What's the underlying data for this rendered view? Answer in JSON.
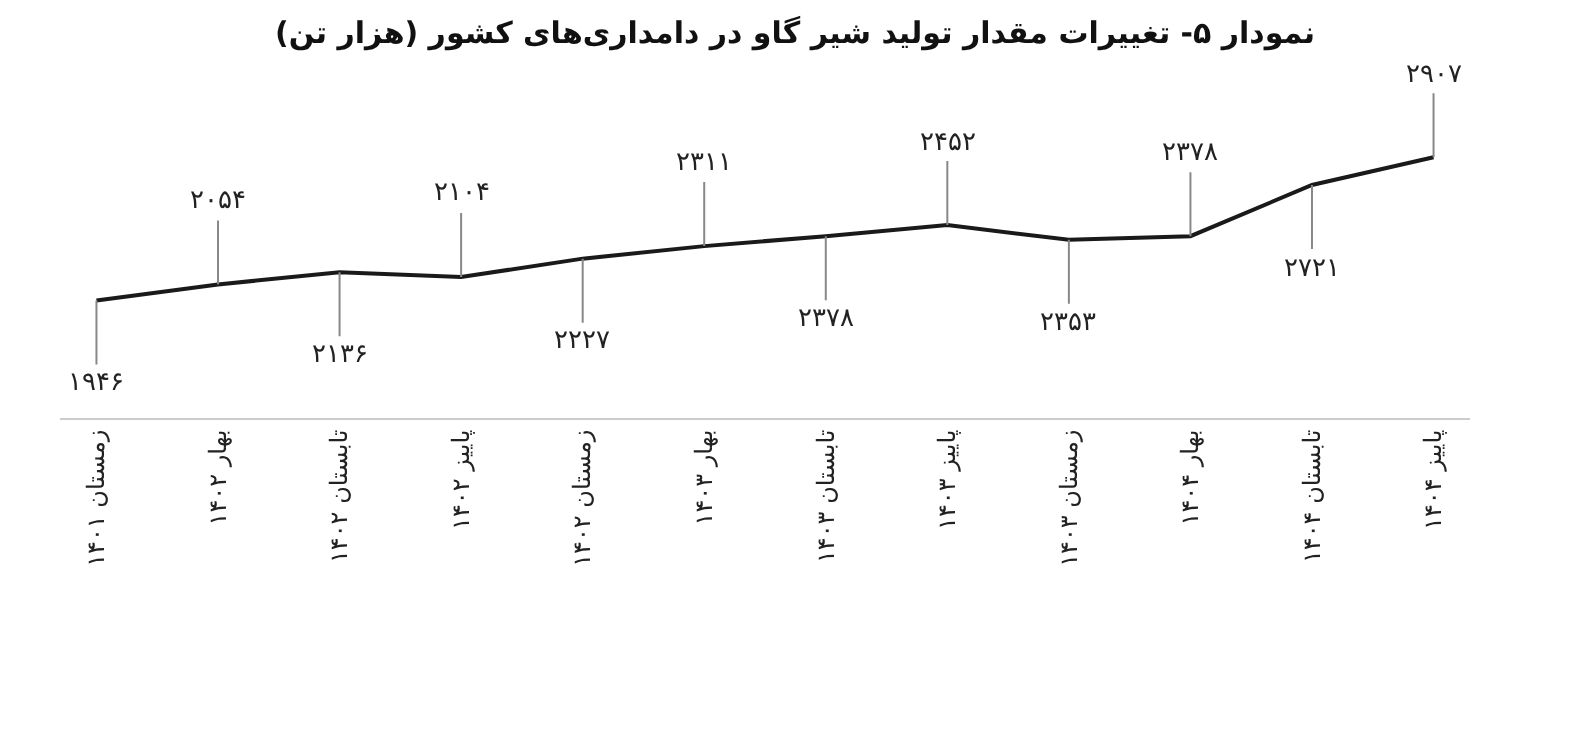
{
  "chart_data": {
    "type": "line",
    "title": "نمودار ۵- تغییرات مقدار تولید شیر گاو در دامداری‌های کشور (هزار تن)",
    "categories": [
      "زمستان ۱۴۰۱",
      "بهار ۱۴۰۲",
      "تابستان ۱۴۰۲",
      "پاییز ۱۴۰۲",
      "زمستان ۱۴۰۲",
      "بهار ۱۴۰۳",
      "تابستان ۱۴۰۳",
      "پاییز ۱۴۰۳",
      "زمستان ۱۴۰۳",
      "بهار ۱۴۰۴",
      "تابستان ۱۴۰۴",
      "پاییز ۱۴۰۴"
    ],
    "values": [
      1946,
      2054,
      2136,
      2104,
      2227,
      2311,
      2378,
      2452,
      2353,
      2378,
      2721,
      2907
    ],
    "value_labels": [
      "۱۹۴۶",
      "۲۰۵۴",
      "۲۱۳۶",
      "۲۱۰۴",
      "۲۲۲۷",
      "۲۳۱۱",
      "۲۳۷۸",
      "۲۴۵۲",
      "۲۳۵۳",
      "۲۳۷۸",
      "۲۷۲۱",
      "۲۹۰۷"
    ],
    "color": "#1a1a1a"
  }
}
